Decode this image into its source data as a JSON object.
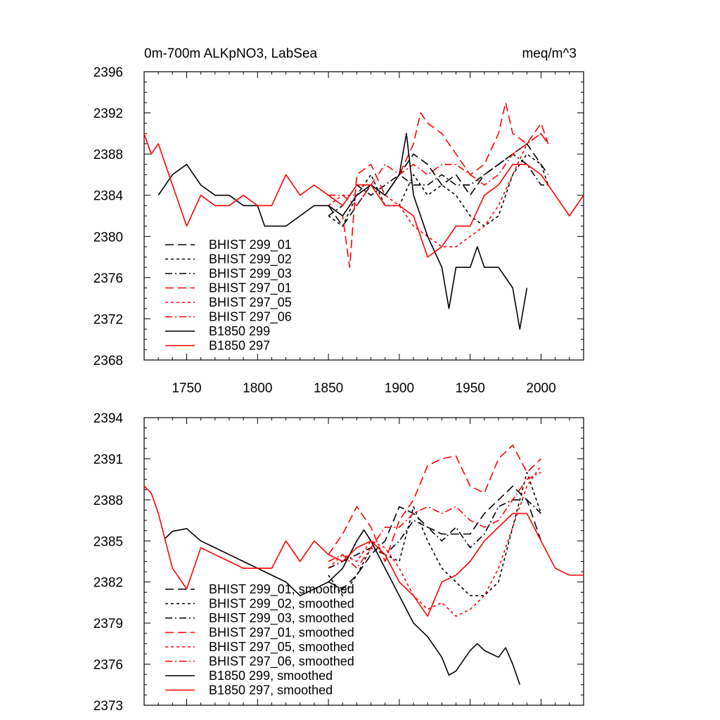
{
  "chart_data": [
    {
      "type": "line",
      "title": "0m-700m ALKpNO3, LabSea",
      "units": "meq/m^3",
      "xlabel": "",
      "ylabel": "",
      "xlim": [
        1720,
        2030
      ],
      "ylim": [
        2368,
        2396
      ],
      "xticks": [
        1750,
        1800,
        1850,
        1900,
        1950,
        2000
      ],
      "yticks": [
        2368,
        2372,
        2376,
        2380,
        2384,
        2388,
        2392,
        2396
      ],
      "xtick_labels": [
        "1750",
        "1800",
        "1850",
        "1900",
        "1950",
        "2000"
      ],
      "ytick_labels": [
        "2368",
        "2372",
        "2376",
        "2380",
        "2384",
        "2388",
        "2392",
        "2396"
      ],
      "grid": false,
      "legend_position": "lower-left",
      "series": [
        {
          "name": "BHIST 299_01",
          "color": "#000000",
          "dash": "long-dash",
          "x": [
            1850,
            1860,
            1870,
            1880,
            1890,
            1900,
            1910,
            1920,
            1930,
            1940,
            1950,
            1960,
            1970,
            1980,
            1990,
            2000,
            2005
          ],
          "y": [
            2383,
            2381,
            2383,
            2385,
            2384,
            2386,
            2388,
            2387,
            2385,
            2386,
            2384,
            2386,
            2387,
            2388,
            2389,
            2387,
            2386
          ]
        },
        {
          "name": "BHIST 299_02",
          "color": "#000000",
          "dash": "short-dash",
          "x": [
            1850,
            1860,
            1870,
            1880,
            1890,
            1900,
            1910,
            1920,
            1930,
            1940,
            1950,
            1960,
            1970,
            1980,
            1990,
            2000,
            2005
          ],
          "y": [
            2382,
            2381,
            2384,
            2386,
            2383,
            2383,
            2386,
            2384,
            2385,
            2384,
            2382,
            2381,
            2382,
            2386,
            2388,
            2387,
            2385
          ]
        },
        {
          "name": "BHIST 299_03",
          "color": "#000000",
          "dash": "dash-dot",
          "x": [
            1850,
            1860,
            1870,
            1880,
            1890,
            1900,
            1910,
            1920,
            1930,
            1940,
            1950,
            1960,
            1970,
            1980,
            1990,
            2000,
            2005
          ],
          "y": [
            2382,
            2383,
            2385,
            2384,
            2385,
            2386,
            2385,
            2385,
            2386,
            2385,
            2385,
            2386,
            2387,
            2388,
            2387,
            2385,
            2385
          ]
        },
        {
          "name": "BHIST 297_01",
          "color": "#ff0000",
          "dash": "long-dash",
          "x": [
            1850,
            1860,
            1865,
            1870,
            1880,
            1890,
            1900,
            1910,
            1915,
            1920,
            1930,
            1940,
            1950,
            1960,
            1970,
            1975,
            1980,
            1990,
            2000,
            2005
          ],
          "y": [
            2383,
            2382,
            2377,
            2386,
            2387,
            2384,
            2386,
            2389,
            2392,
            2391,
            2390,
            2388,
            2386,
            2387,
            2390,
            2393,
            2390,
            2389,
            2391,
            2389
          ]
        },
        {
          "name": "BHIST 297_05",
          "color": "#ff0000",
          "dash": "short-dash",
          "x": [
            1850,
            1860,
            1870,
            1880,
            1890,
            1900,
            1910,
            1920,
            1930,
            1940,
            1950,
            1960,
            1970,
            1980,
            1990,
            2000,
            2005
          ],
          "y": [
            2383,
            2384,
            2384,
            2385,
            2384,
            2383,
            2381,
            2380,
            2379,
            2379,
            2380,
            2381,
            2383,
            2386,
            2389,
            2390,
            2389
          ]
        },
        {
          "name": "BHIST 297_06",
          "color": "#ff0000",
          "dash": "dash-dot",
          "x": [
            1850,
            1860,
            1870,
            1880,
            1890,
            1900,
            1910,
            1920,
            1930,
            1940,
            1950,
            1960,
            1970,
            1980,
            1990,
            2000,
            2005
          ],
          "y": [
            2384,
            2384,
            2383,
            2385,
            2387,
            2386,
            2387,
            2386,
            2387,
            2387,
            2386,
            2385,
            2386,
            2388,
            2389,
            2390,
            2389
          ]
        },
        {
          "name": "B1850 299",
          "color": "#000000",
          "dash": "solid",
          "x": [
            1730,
            1740,
            1750,
            1760,
            1770,
            1780,
            1790,
            1800,
            1805,
            1810,
            1820,
            1830,
            1840,
            1850,
            1860,
            1870,
            1880,
            1890,
            1900,
            1905,
            1910,
            1920,
            1930,
            1935,
            1940,
            1950,
            1955,
            1960,
            1970,
            1980,
            1985,
            1990
          ],
          "y": [
            2384,
            2386,
            2387,
            2385,
            2384,
            2384,
            2383,
            2383,
            2381,
            2381,
            2381,
            2382,
            2383,
            2383,
            2382,
            2384,
            2385,
            2384,
            2386,
            2390,
            2384,
            2380,
            2377,
            2373,
            2377,
            2377,
            2379,
            2377,
            2377,
            2375,
            2371,
            2375
          ]
        },
        {
          "name": "B1850 297",
          "color": "#ff0000",
          "dash": "solid",
          "x": [
            1720,
            1725,
            1730,
            1740,
            1745,
            1750,
            1760,
            1770,
            1780,
            1790,
            1800,
            1810,
            1820,
            1830,
            1840,
            1850,
            1860,
            1870,
            1880,
            1890,
            1900,
            1910,
            1920,
            1930,
            1940,
            1950,
            1960,
            1970,
            1980,
            1990,
            2000,
            2005,
            2010,
            2020,
            2030
          ],
          "y": [
            2390,
            2388,
            2389,
            2385,
            2383,
            2381,
            2384,
            2383,
            2383,
            2384,
            2383,
            2383,
            2386,
            2384,
            2385,
            2384,
            2383,
            2385,
            2385,
            2383,
            2383,
            2382,
            2378,
            2379,
            2381,
            2381,
            2384,
            2385,
            2387,
            2387,
            2386,
            2385,
            2384,
            2382,
            2384
          ]
        }
      ]
    },
    {
      "type": "line",
      "title": "",
      "xlabel": "",
      "ylabel": "",
      "xlim": [
        1720,
        2030
      ],
      "ylim": [
        2373,
        2394
      ],
      "xticks": [
        1750,
        1800,
        1850,
        1900,
        1950,
        2000
      ],
      "yticks": [
        2373,
        2376,
        2379,
        2382,
        2385,
        2388,
        2391,
        2394
      ],
      "ytick_labels": [
        "2373",
        "2376",
        "2379",
        "2382",
        "2385",
        "2388",
        "2391",
        "2394"
      ],
      "grid": false,
      "legend_position": "lower-left",
      "series": [
        {
          "name": "BHIST 299_01, smoothed",
          "color": "#000000",
          "dash": "long-dash",
          "x": [
            1850,
            1860,
            1870,
            1880,
            1890,
            1900,
            1910,
            1920,
            1930,
            1940,
            1950,
            1960,
            1970,
            1980,
            1990,
            2000
          ],
          "y": [
            2382,
            2381.5,
            2382.5,
            2384,
            2385,
            2387.5,
            2387,
            2386,
            2385.5,
            2385.5,
            2385.5,
            2387,
            2388,
            2389,
            2388,
            2385
          ]
        },
        {
          "name": "BHIST 299_02, smoothed",
          "color": "#000000",
          "dash": "short-dash",
          "x": [
            1850,
            1860,
            1870,
            1880,
            1890,
            1900,
            1910,
            1920,
            1930,
            1940,
            1950,
            1960,
            1970,
            1980,
            1990,
            2000
          ],
          "y": [
            2382.5,
            2381,
            2382.5,
            2384.5,
            2384,
            2383.5,
            2387.5,
            2385,
            2383,
            2382,
            2381,
            2381,
            2382,
            2386,
            2390,
            2387
          ]
        },
        {
          "name": "BHIST 299_03, smoothed",
          "color": "#000000",
          "dash": "dash-dot",
          "x": [
            1850,
            1860,
            1870,
            1880,
            1890,
            1900,
            1910,
            1920,
            1930,
            1940,
            1950,
            1960,
            1970,
            1980,
            1990,
            2000
          ],
          "y": [
            2383,
            2383.5,
            2384,
            2384.5,
            2384,
            2385,
            2386.5,
            2386,
            2385,
            2386,
            2384.5,
            2385.5,
            2387.5,
            2388,
            2388,
            2387
          ]
        },
        {
          "name": "BHIST 297_01, smoothed",
          "color": "#ff0000",
          "dash": "long-dash",
          "x": [
            1850,
            1860,
            1870,
            1880,
            1890,
            1900,
            1910,
            1920,
            1930,
            1940,
            1950,
            1960,
            1970,
            1980,
            1990,
            2000
          ],
          "y": [
            2384,
            2385.5,
            2387.5,
            2386,
            2383.5,
            2386.5,
            2388,
            2390.5,
            2391,
            2391.2,
            2389,
            2388.5,
            2391,
            2392,
            2390,
            2391
          ]
        },
        {
          "name": "BHIST 297_05, smoothed",
          "color": "#ff0000",
          "dash": "short-dash",
          "x": [
            1850,
            1860,
            1870,
            1880,
            1890,
            1900,
            1910,
            1920,
            1930,
            1940,
            1950,
            1960,
            1970,
            1980,
            1990,
            2000
          ],
          "y": [
            2383,
            2384,
            2383.5,
            2385,
            2384.5,
            2383,
            2381,
            2380,
            2380.5,
            2379.5,
            2380,
            2381,
            2383,
            2386,
            2389,
            2390.5
          ]
        },
        {
          "name": "BHIST 297_06, smoothed",
          "color": "#ff0000",
          "dash": "dash-dot",
          "x": [
            1850,
            1860,
            1870,
            1880,
            1890,
            1900,
            1910,
            1920,
            1930,
            1940,
            1950,
            1960,
            1970,
            1980,
            1990,
            2000
          ],
          "y": [
            2383.5,
            2384,
            2383,
            2384.5,
            2386,
            2386,
            2387,
            2387.5,
            2387,
            2387.5,
            2386.5,
            2386,
            2386.5,
            2388,
            2389.5,
            2390
          ]
        },
        {
          "name": "B1850 299, smoothed",
          "color": "#000000",
          "dash": "solid",
          "x": [
            1735,
            1740,
            1750,
            1760,
            1770,
            1780,
            1790,
            1800,
            1810,
            1820,
            1830,
            1840,
            1850,
            1860,
            1870,
            1875,
            1880,
            1890,
            1900,
            1910,
            1920,
            1930,
            1935,
            1940,
            1950,
            1955,
            1960,
            1970,
            1975,
            1980,
            1985
          ],
          "y": [
            2385.2,
            2385.7,
            2385.9,
            2385,
            2384.5,
            2384,
            2383.5,
            2383,
            2382.5,
            2382,
            2381,
            2381.5,
            2382,
            2383,
            2385,
            2385.8,
            2385,
            2383,
            2381,
            2379,
            2378,
            2376.5,
            2375.2,
            2375.5,
            2377,
            2377.5,
            2377,
            2376.5,
            2377.2,
            2376,
            2374.5
          ]
        },
        {
          "name": "B1850 297, smoothed",
          "color": "#ff0000",
          "dash": "solid",
          "x": [
            1720,
            1725,
            1730,
            1740,
            1750,
            1760,
            1770,
            1780,
            1790,
            1800,
            1810,
            1820,
            1830,
            1840,
            1850,
            1860,
            1870,
            1880,
            1890,
            1900,
            1910,
            1920,
            1930,
            1940,
            1950,
            1960,
            1970,
            1980,
            1990,
            2000,
            2010,
            2020,
            2030
          ],
          "y": [
            2389,
            2388.5,
            2387,
            2383,
            2381.5,
            2384.5,
            2384,
            2383.5,
            2383,
            2383,
            2383,
            2385,
            2383.5,
            2385,
            2384,
            2383.5,
            2384.5,
            2385,
            2384,
            2382,
            2381,
            2379.5,
            2382,
            2382.5,
            2383.5,
            2385,
            2386,
            2387,
            2387,
            2385,
            2383,
            2382.5,
            2382.5
          ]
        }
      ]
    }
  ]
}
